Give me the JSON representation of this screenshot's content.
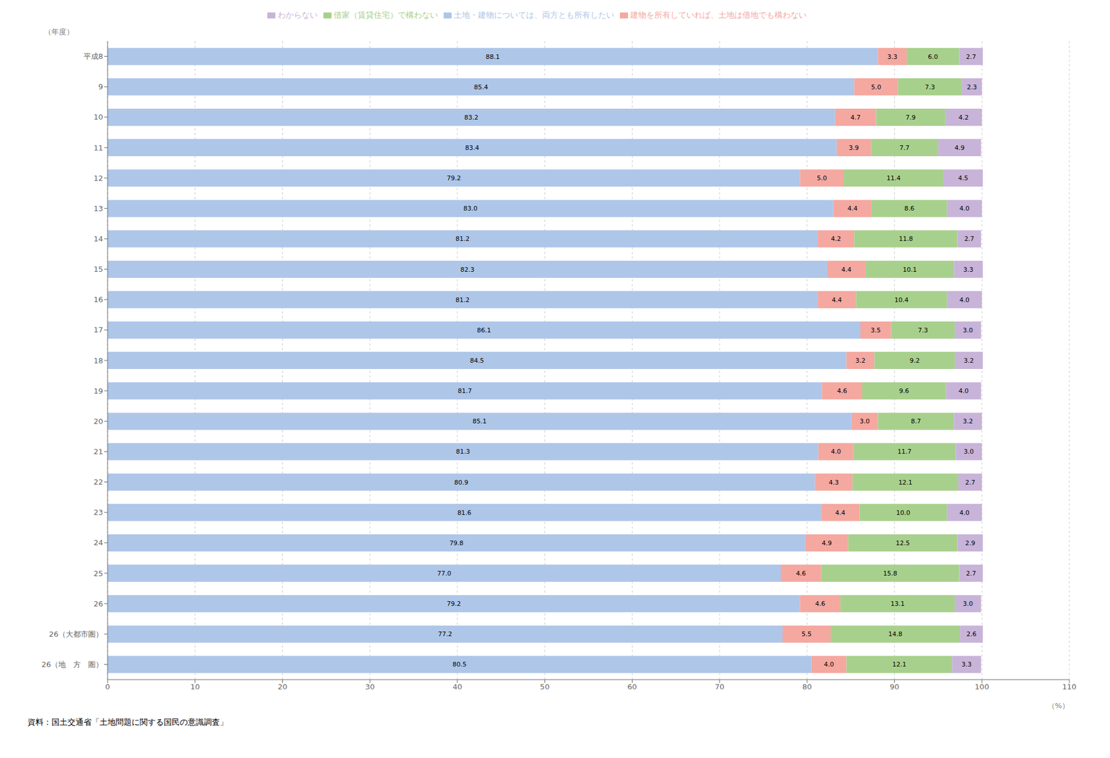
{
  "chart_data": {
    "type": "bar",
    "orientation": "horizontal",
    "stacked": true,
    "data_labels": true,
    "grid": true,
    "legend": "top",
    "x_label": "（%）",
    "y_label": "（年度）",
    "annotations": [
      "資料：国土交通省「土地問題に関する国民の意識調査」"
    ],
    "categories": [
      "平成8",
      "9",
      "10",
      "11",
      "12",
      "13",
      "14",
      "15",
      "16",
      "17",
      "18",
      "19",
      "20",
      "21",
      "22",
      "23",
      "24",
      "25",
      "26",
      "26（大都市圏）",
      "26（地　方　圏）"
    ],
    "xlim": [
      0,
      110
    ],
    "xticks": [
      0,
      10,
      20,
      30,
      40,
      50,
      60,
      70,
      80,
      90,
      100,
      110
    ],
    "series": [
      {
        "name": "土地・建物については、両方とも所有したい",
        "color": "#aec6e8",
        "values": [
          88.1,
          85.4,
          83.2,
          83.4,
          79.2,
          83.0,
          81.2,
          82.3,
          81.2,
          86.1,
          84.5,
          81.7,
          85.1,
          81.3,
          80.9,
          81.6,
          79.8,
          77.0,
          79.2,
          77.2,
          80.5
        ],
        "value_labels": [
          "88.1",
          "85.4",
          "83.2",
          "83.4",
          "79.2",
          "83.0",
          "81.2",
          "82.3",
          "81.2",
          "86.1",
          "84.5",
          "81.7",
          "85.1",
          "81.3",
          "80.9",
          "81.6",
          "79.8",
          "77.0",
          "79.2",
          "77.2",
          "80.5"
        ]
      },
      {
        "name": "建物を所有していれば、土地は借地でも構わない",
        "color": "#f4a8a0",
        "values": [
          3.3,
          5.0,
          4.7,
          3.9,
          5.0,
          4.4,
          4.2,
          4.4,
          4.4,
          3.5,
          3.2,
          4.6,
          3.0,
          4.0,
          4.3,
          4.4,
          4.9,
          4.6,
          4.6,
          5.5,
          4.0
        ],
        "value_labels": [
          "3.3",
          "5.0",
          "4.7",
          "3.9",
          "5.0",
          "4.4",
          "4.2",
          "4.4",
          "4.4",
          "3.5",
          "3.2",
          "4.6",
          "3.0",
          "4.0",
          "4.3",
          "4.4",
          "4.9",
          "4.6",
          "4.6",
          "5.5",
          "4.0"
        ]
      },
      {
        "name": "借家（賃貸住宅）で構わない",
        "color": "#a8d08d",
        "values": [
          6.0,
          7.3,
          7.9,
          7.7,
          11.4,
          8.6,
          11.8,
          10.1,
          10.4,
          7.3,
          9.2,
          9.6,
          8.7,
          11.7,
          12.1,
          10.0,
          12.5,
          15.8,
          13.1,
          14.8,
          12.1
        ],
        "value_labels": [
          "6.0",
          "7.3",
          "7.9",
          "7.7",
          "11.4",
          "8.6",
          "11.8",
          "10.1",
          "10.4",
          "7.3",
          "9.2",
          "9.6",
          "8.7",
          "11.7",
          "12.1",
          "10.0",
          "12.5",
          "15.8",
          "13.1",
          "14.8",
          "12.1"
        ]
      },
      {
        "name": "わからない",
        "color": "#c8b4d8",
        "values": [
          2.7,
          2.3,
          4.2,
          4.9,
          4.5,
          4.0,
          2.7,
          3.3,
          4.0,
          3.0,
          3.2,
          4.0,
          3.2,
          3.0,
          2.7,
          4.0,
          2.9,
          2.7,
          3.0,
          2.6,
          3.3
        ],
        "value_labels": [
          "2.7",
          "2.3",
          "4.2",
          "4.9",
          "4.5",
          "4.0",
          "2.7",
          "3.3",
          "4.0",
          "3.0",
          "3.2",
          "4.0",
          "3.2",
          "3.0",
          "2.7",
          "4.0",
          "2.9",
          "2.7",
          "3.0",
          "2.6",
          "3.3"
        ]
      }
    ]
  }
}
